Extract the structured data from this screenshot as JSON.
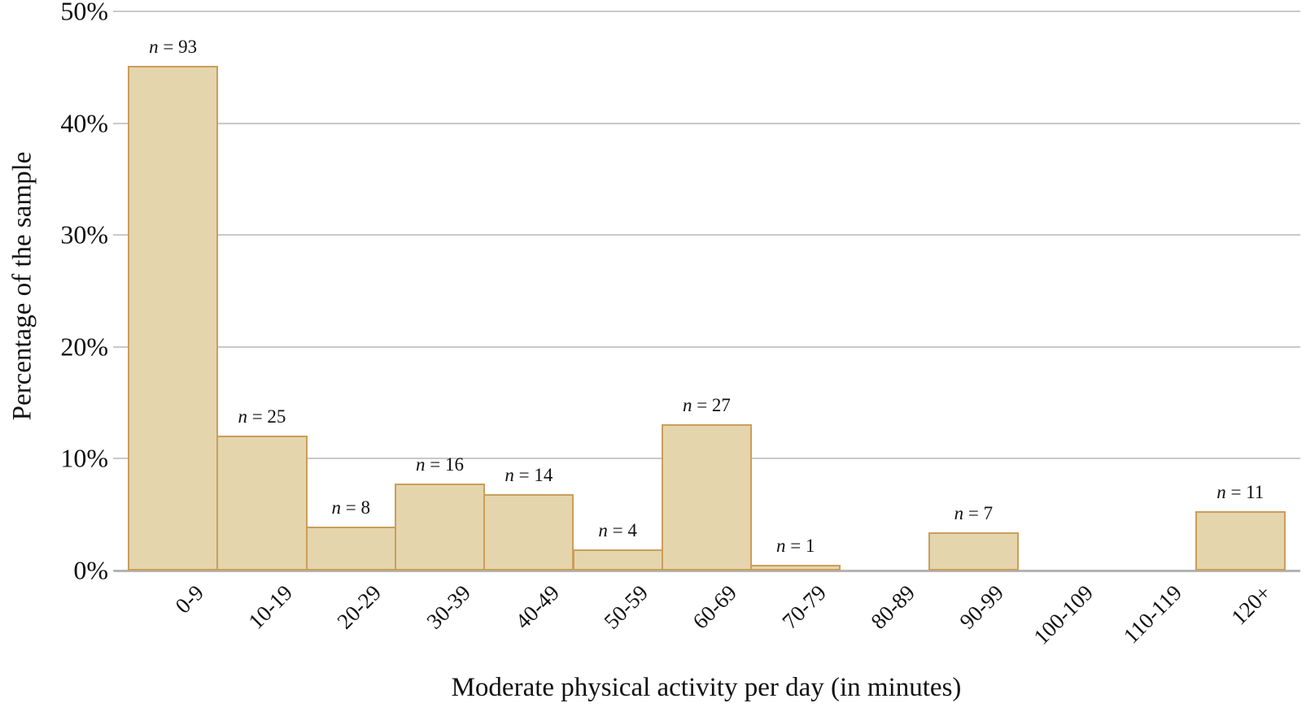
{
  "chart_data": {
    "type": "bar",
    "title": "",
    "xlabel": "Moderate physical activity per day (in minutes)",
    "ylabel": "Percentage of the sample",
    "categories": [
      "0-9",
      "10-19",
      "20-29",
      "30-39",
      "40-49",
      "50-59",
      "60-69",
      "70-79",
      "80-89",
      "90-99",
      "100-109",
      "110-119",
      "120+"
    ],
    "series": [
      {
        "name": "Percentage of the sample",
        "values": [
          45.1,
          12.1,
          3.9,
          7.8,
          6.8,
          1.9,
          13.1,
          0.5,
          0,
          3.4,
          0,
          0,
          5.3
        ]
      }
    ],
    "counts": [
      93,
      25,
      8,
      16,
      14,
      4,
      27,
      1,
      0,
      7,
      0,
      0,
      11
    ],
    "bar_labels": [
      "n = 93",
      "n = 25",
      "n = 8",
      "n = 16",
      "n = 14",
      "n = 4",
      "n = 27",
      "n = 1",
      "",
      "n = 7",
      "",
      "",
      "n = 11"
    ],
    "y_ticks": [
      "0%",
      "10%",
      "20%",
      "30%",
      "40%",
      "50%"
    ],
    "y_tick_values": [
      0,
      10,
      20,
      30,
      40,
      50
    ],
    "ylim": [
      0,
      50
    ],
    "grid": true,
    "legend_position": "none",
    "colors": {
      "bar_fill": "#e5d5ad",
      "bar_border": "#ca9e5a",
      "gridline": "#c9c9c9",
      "axis_line": "#b3b3b3",
      "text": "#111111"
    }
  }
}
